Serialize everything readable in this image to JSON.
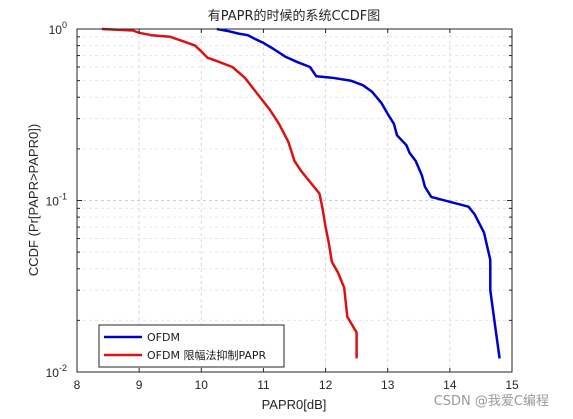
{
  "chart_data": {
    "type": "line",
    "title": "有PAPR的时候的系统CCDF图",
    "xlabel": "PAPR0[dB]",
    "ylabel": "CCDF (Pr[PAPR>PAPR0])",
    "xlim": [
      8,
      15
    ],
    "ylim": [
      0.01,
      1
    ],
    "yscale": "log",
    "xticks": [
      "8",
      "9",
      "10",
      "11",
      "12",
      "13",
      "14",
      "15"
    ],
    "yticks": [
      {
        "value": 1,
        "base": "10",
        "exp": "0"
      },
      {
        "value": 0.1,
        "base": "10",
        "exp": "-1"
      },
      {
        "value": 0.01,
        "base": "10",
        "exp": "-2"
      }
    ],
    "grid": true,
    "legend_position": "bottom-left",
    "series": [
      {
        "name": "OFDM",
        "color": "#0000cc",
        "x": [
          10.25,
          10.45,
          10.6,
          10.75,
          10.85,
          11.0,
          11.15,
          11.35,
          11.55,
          11.75,
          11.85,
          12.1,
          12.4,
          12.6,
          12.75,
          12.9,
          13.0,
          13.1,
          13.15,
          13.3,
          13.35,
          13.45,
          13.55,
          13.6,
          13.7,
          14.3,
          14.4,
          14.55,
          14.65,
          14.65,
          14.7,
          14.8
        ],
        "y": [
          1.0,
          0.97,
          0.94,
          0.92,
          0.88,
          0.83,
          0.77,
          0.69,
          0.64,
          0.6,
          0.53,
          0.52,
          0.5,
          0.47,
          0.43,
          0.37,
          0.32,
          0.28,
          0.24,
          0.21,
          0.19,
          0.17,
          0.14,
          0.12,
          0.105,
          0.092,
          0.083,
          0.065,
          0.045,
          0.03,
          0.022,
          0.012
        ]
      },
      {
        "name": "OFDM 限幅法抑制PAPR",
        "color": "#dd1111",
        "x": [
          8.4,
          8.9,
          9.0,
          9.2,
          9.5,
          9.7,
          9.9,
          10.0,
          10.1,
          10.25,
          10.5,
          10.7,
          10.9,
          11.1,
          11.25,
          11.4,
          11.5,
          11.6,
          11.7,
          11.9,
          11.95,
          12.0,
          12.05,
          12.1,
          12.2,
          12.3,
          12.35,
          12.5,
          12.5
        ],
        "y": [
          1.0,
          0.98,
          0.95,
          0.92,
          0.9,
          0.85,
          0.8,
          0.74,
          0.68,
          0.65,
          0.6,
          0.52,
          0.42,
          0.34,
          0.28,
          0.22,
          0.17,
          0.15,
          0.135,
          0.11,
          0.09,
          0.07,
          0.057,
          0.044,
          0.038,
          0.031,
          0.021,
          0.017,
          0.012
        ]
      }
    ]
  },
  "watermark": "CSDN @我爱C编程"
}
